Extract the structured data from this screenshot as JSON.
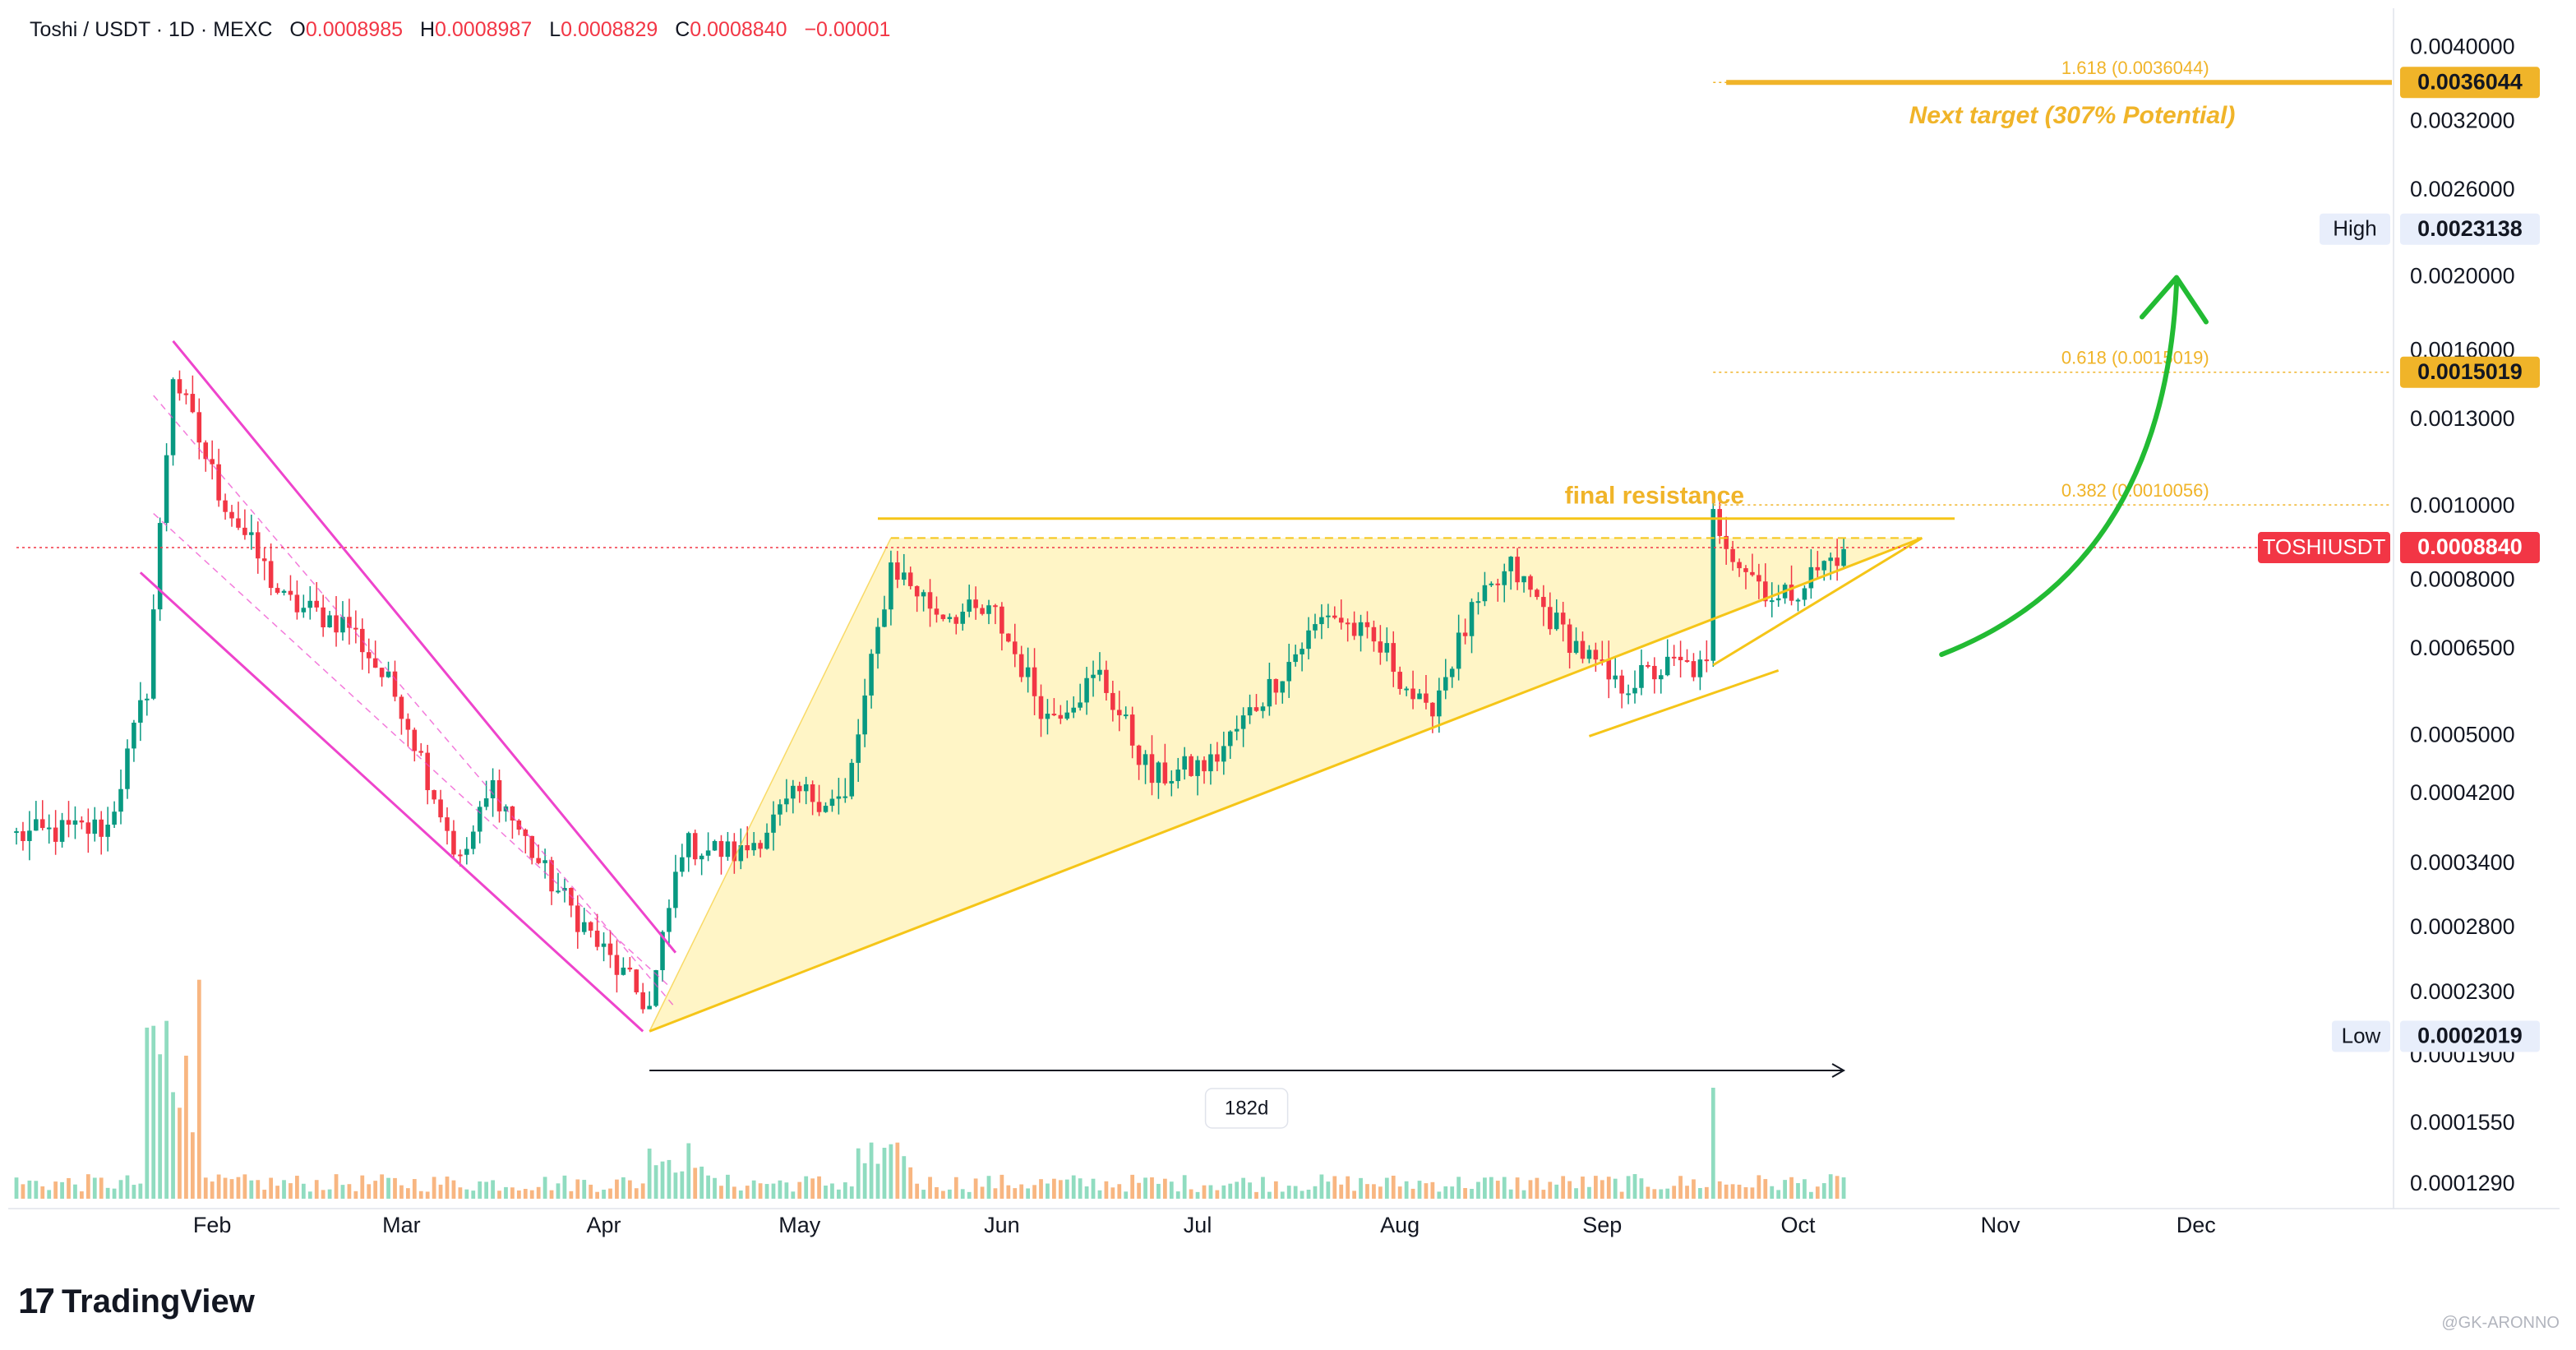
{
  "header": {
    "symbol": "Toshi / USDT · 1D · MEXC",
    "o_label": "O",
    "o_value": "0.0008985",
    "h_label": "H",
    "h_value": "0.0008987",
    "l_label": "L",
    "l_value": "0.0008829",
    "c_label": "C",
    "c_value": "0.0008840",
    "change": "−0.00001"
  },
  "brand": {
    "name": "TradingView",
    "logo": "TV-logo-icon"
  },
  "watermark": "@GK-ARONNO",
  "colors": {
    "up": "#089981",
    "down": "#f23645",
    "channel": "#ee44cc",
    "triangle": "#f5c518",
    "fib": "#f0b429",
    "target": "#f0b429",
    "arrow": "#22bb33",
    "price_line": "#f23645",
    "axis_text": "#131722"
  },
  "chart_data": {
    "type": "candlestick",
    "symbol": "TOSHIUSDT",
    "interval": "1D",
    "exchange": "MEXC",
    "scale": "log",
    "ylim": [
      0.000123,
      0.0044
    ],
    "y_ticks": [
      0.004,
      0.0032,
      0.0026,
      0.002,
      0.0016,
      0.0013,
      0.001,
      0.0008,
      0.00065,
      0.0005,
      0.00042,
      0.00034,
      0.00028,
      0.00023,
      0.00019,
      0.000155,
      0.000129
    ],
    "y_tick_labels": [
      "0.0040000",
      "0.0032000",
      "0.0026000",
      "0.0020000",
      "0.0016000",
      "0.0013000",
      "0.0010000",
      "0.0008000",
      "0.0006500",
      "0.0005000",
      "0.0004200",
      "0.0003400",
      "0.0002800",
      "0.0002300",
      "0.0001900",
      "0.0001550",
      "0.0001290"
    ],
    "x_labels": [
      {
        "date": "2024-02-01",
        "label": "Feb"
      },
      {
        "date": "2024-03-01",
        "label": "Mar"
      },
      {
        "date": "2024-04-01",
        "label": "Apr"
      },
      {
        "date": "2024-05-01",
        "label": "May"
      },
      {
        "date": "2024-06-01",
        "label": "Jun"
      },
      {
        "date": "2024-07-01",
        "label": "Jul"
      },
      {
        "date": "2024-08-01",
        "label": "Aug"
      },
      {
        "date": "2024-09-01",
        "label": "Sep"
      },
      {
        "date": "2024-10-01",
        "label": "Oct"
      },
      {
        "date": "2024-11-01",
        "label": "Nov"
      },
      {
        "date": "2024-12-01",
        "label": "Dec"
      }
    ],
    "xlim": [
      "2024-01-02",
      "2024-12-31"
    ],
    "keypoints": [
      {
        "date": "2024-01-02",
        "close": 0.00037
      },
      {
        "date": "2024-01-16",
        "close": 0.00038
      },
      {
        "date": "2024-01-22",
        "close": 0.00058
      },
      {
        "date": "2024-01-26",
        "close": 0.0015
      },
      {
        "date": "2024-02-02",
        "close": 0.00105
      },
      {
        "date": "2024-02-12",
        "close": 0.00075
      },
      {
        "date": "2024-02-22",
        "close": 0.0007
      },
      {
        "date": "2024-03-01",
        "close": 0.00055
      },
      {
        "date": "2024-03-10",
        "close": 0.00034
      },
      {
        "date": "2024-03-15",
        "close": 0.00043
      },
      {
        "date": "2024-03-23",
        "close": 0.00033
      },
      {
        "date": "2024-04-01",
        "close": 0.00026
      },
      {
        "date": "2024-04-08",
        "close": 0.00022
      },
      {
        "date": "2024-04-13",
        "close": 0.00036
      },
      {
        "date": "2024-04-22",
        "close": 0.00035
      },
      {
        "date": "2024-05-01",
        "close": 0.00042
      },
      {
        "date": "2024-05-08",
        "close": 0.00041
      },
      {
        "date": "2024-05-15",
        "close": 0.00084
      },
      {
        "date": "2024-05-22",
        "close": 0.00073
      },
      {
        "date": "2024-05-31",
        "close": 0.00072
      },
      {
        "date": "2024-06-08",
        "close": 0.00053
      },
      {
        "date": "2024-06-16",
        "close": 0.0006
      },
      {
        "date": "2024-06-24",
        "close": 0.00044
      },
      {
        "date": "2024-07-03",
        "close": 0.00046
      },
      {
        "date": "2024-07-12",
        "close": 0.00058
      },
      {
        "date": "2024-07-21",
        "close": 0.00073
      },
      {
        "date": "2024-07-30",
        "close": 0.00064
      },
      {
        "date": "2024-08-05",
        "close": 0.00053
      },
      {
        "date": "2024-08-12",
        "close": 0.00072
      },
      {
        "date": "2024-08-18",
        "close": 0.00083
      },
      {
        "date": "2024-08-25",
        "close": 0.0007
      },
      {
        "date": "2024-09-03",
        "close": 0.00058
      },
      {
        "date": "2024-09-12",
        "close": 0.00062
      },
      {
        "date": "2024-09-17",
        "close": 0.00061
      },
      {
        "date": "2024-09-18",
        "close": 0.00097
      },
      {
        "date": "2024-09-22",
        "close": 0.00085
      },
      {
        "date": "2024-09-28",
        "close": 0.00075
      },
      {
        "date": "2024-10-08",
        "close": 0.00088
      }
    ],
    "volume_bars": 280,
    "annotations": {
      "price_line": {
        "label": "TOSHIUSDT",
        "value": "0.0008840",
        "y": 0.000884
      },
      "high": {
        "label": "High",
        "value": "0.0023138",
        "y": 0.0023138
      },
      "low": {
        "label": "Low",
        "value": "0.0002019",
        "y": 0.0002019
      },
      "fib_levels": [
        {
          "label": "1.618 (0.0036044)",
          "y": 0.0036044,
          "badge": "0.0036044"
        },
        {
          "label": "0.618 (0.0015019)",
          "y": 0.0015019,
          "badge": "0.0015019"
        },
        {
          "label": "0.382 (0.0010056)",
          "y": 0.0010056
        }
      ],
      "target_text": "Next target (307% Potential)",
      "resistance_text": "final resistance",
      "range": {
        "label": "182d",
        "start": "2024-04-08",
        "end": "2024-10-08"
      }
    }
  }
}
